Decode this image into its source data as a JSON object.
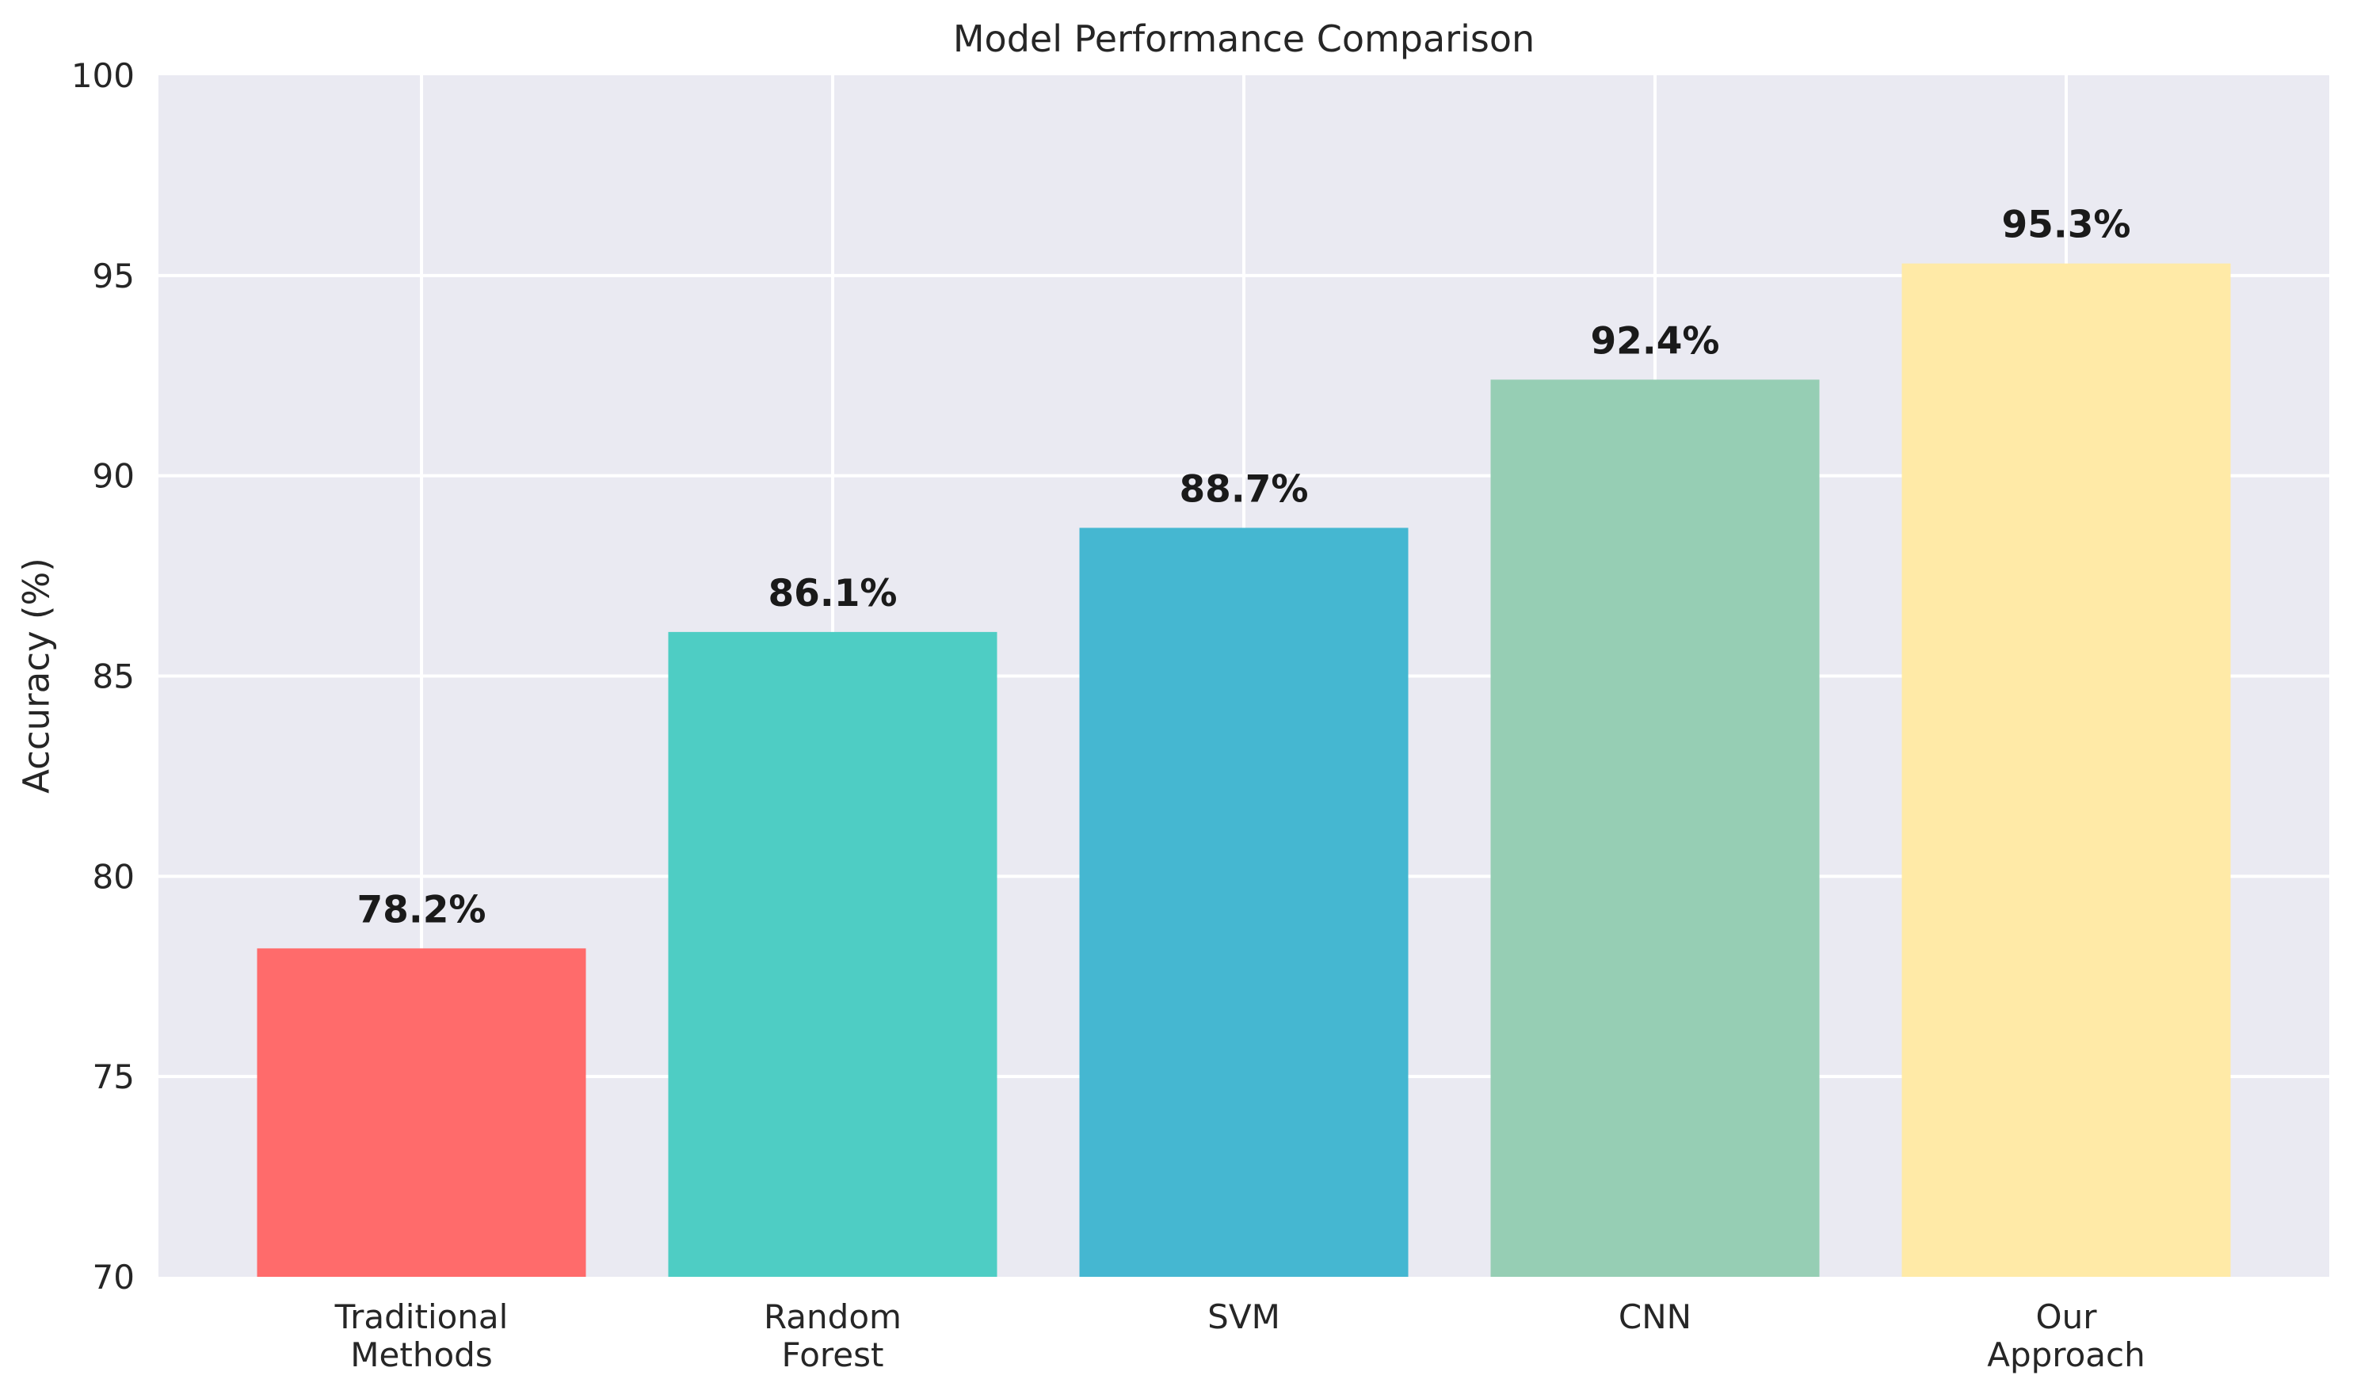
{
  "chart_data": {
    "type": "bar",
    "title": "Model Performance Comparison",
    "ylabel": "Accuracy (%)",
    "xlabel": "",
    "categories": [
      "Traditional\nMethods",
      "Random\nForest",
      "SVM",
      "CNN",
      "Our\nApproach"
    ],
    "values": [
      78.2,
      86.1,
      88.7,
      92.4,
      95.3
    ],
    "bar_labels": [
      "78.2%",
      "86.1%",
      "88.7%",
      "92.4%",
      "95.3%"
    ],
    "bar_colors": [
      "#FF6B6B",
      "#4ECDC4",
      "#45B7D1",
      "#96CEB4",
      "#FFEAA7"
    ],
    "ylim": [
      70,
      100
    ],
    "yticks": [
      70,
      75,
      80,
      85,
      90,
      95,
      100
    ],
    "grid": "on",
    "legend": "none",
    "plot_bg": "#EAEAF2",
    "figure_bg": "#FFFFFF",
    "grid_color": "#FFFFFF",
    "tick_color": "#262626",
    "title_color": "#262626",
    "value_label_color": "#1A1A1A"
  }
}
